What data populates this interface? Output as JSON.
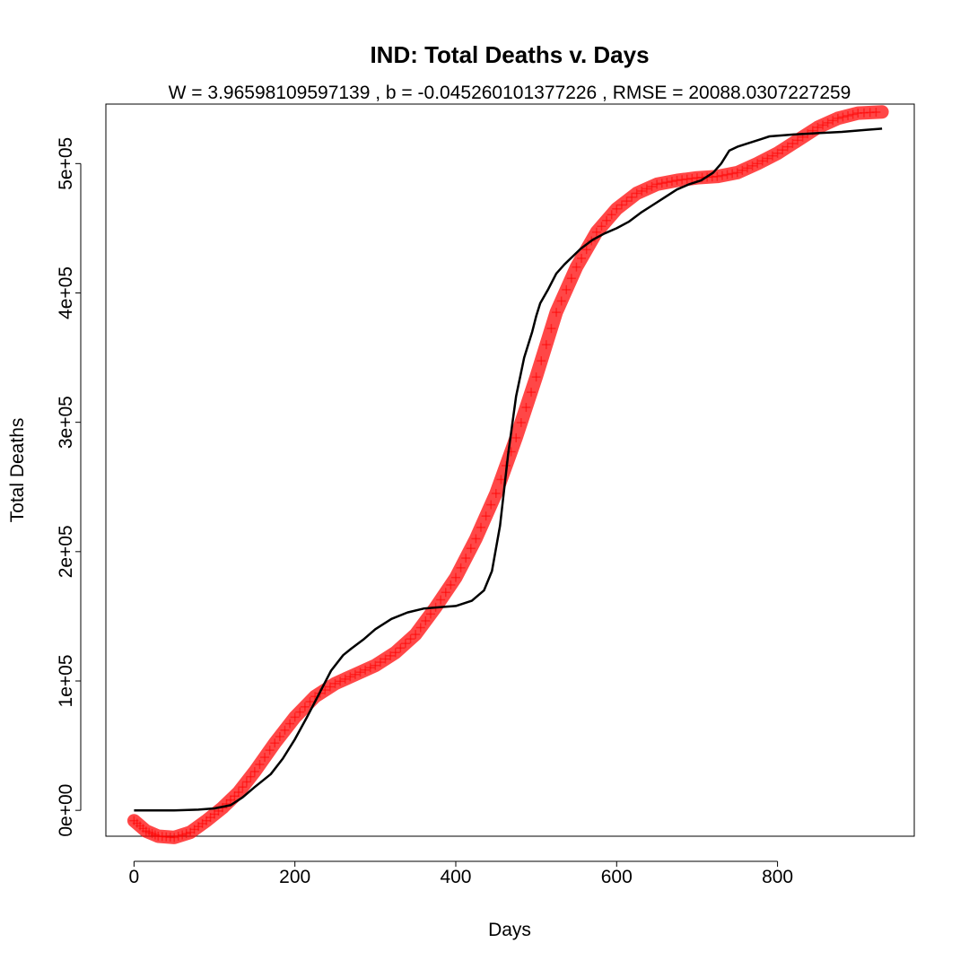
{
  "chart_data": {
    "type": "line",
    "title": "IND: Total Deaths v. Days",
    "subtitle": "W = 3.96598109597139 , b = -0.045260101377226 , RMSE = 20088.0307227259",
    "xlabel": "Days",
    "ylabel": "Total Deaths",
    "xlim": [
      -35,
      970
    ],
    "ylim": [
      -20000,
      546000
    ],
    "x_ticks": [
      0,
      200,
      400,
      600,
      800
    ],
    "x_tick_labels": [
      "0",
      "200",
      "400",
      "600",
      "800"
    ],
    "y_ticks": [
      0,
      100000,
      200000,
      300000,
      400000,
      500000
    ],
    "y_tick_labels": [
      "0e+00",
      "1e+05",
      "2e+05",
      "3e+05",
      "4e+05",
      "5e+05"
    ],
    "grid": false,
    "series": [
      {
        "role": "observed",
        "color": "#000000",
        "x": [
          0,
          50,
          80,
          100,
          120,
          135,
          150,
          170,
          185,
          200,
          215,
          230,
          245,
          260,
          270,
          285,
          300,
          320,
          340,
          360,
          380,
          400,
          420,
          435,
          445,
          455,
          465,
          475,
          485,
          495,
          500,
          505,
          515,
          525,
          535,
          545,
          555,
          570,
          585,
          600,
          615,
          630,
          645,
          660,
          675,
          690,
          705,
          720,
          730,
          740,
          750,
          760,
          770,
          780,
          790,
          820,
          850,
          880,
          910,
          930
        ],
        "y": [
          0,
          0,
          500,
          1500,
          4000,
          10000,
          18000,
          28000,
          40000,
          55000,
          72000,
          90000,
          108000,
          120000,
          125000,
          132000,
          140000,
          148000,
          153000,
          156000,
          157000,
          158000,
          162000,
          170000,
          185000,
          220000,
          275000,
          320000,
          350000,
          370000,
          382000,
          392000,
          403000,
          415000,
          422000,
          428000,
          434000,
          441000,
          446000,
          450000,
          455000,
          462000,
          468000,
          474000,
          480000,
          484000,
          487000,
          493000,
          500000,
          510000,
          513000,
          515000,
          517000,
          519000,
          521000,
          522500,
          523500,
          524500,
          526000,
          527000
        ]
      },
      {
        "role": "fitted",
        "color": "#ff0000",
        "x": [
          0,
          15,
          30,
          50,
          70,
          90,
          110,
          130,
          150,
          175,
          200,
          225,
          250,
          275,
          300,
          325,
          350,
          375,
          400,
          425,
          450,
          475,
          500,
          525,
          550,
          575,
          600,
          625,
          650,
          675,
          700,
          725,
          750,
          775,
          800,
          825,
          850,
          875,
          900,
          930
        ],
        "y": [
          -8000,
          -16000,
          -20000,
          -21000,
          -17000,
          -8000,
          2000,
          14000,
          30000,
          52000,
          72000,
          88000,
          98000,
          105000,
          112000,
          122000,
          136000,
          157000,
          180000,
          210000,
          245000,
          288000,
          335000,
          385000,
          420000,
          447000,
          465000,
          477000,
          484000,
          487000,
          489000,
          490000,
          493000,
          500000,
          508000,
          518000,
          528000,
          535000,
          539000,
          540000
        ]
      }
    ]
  }
}
